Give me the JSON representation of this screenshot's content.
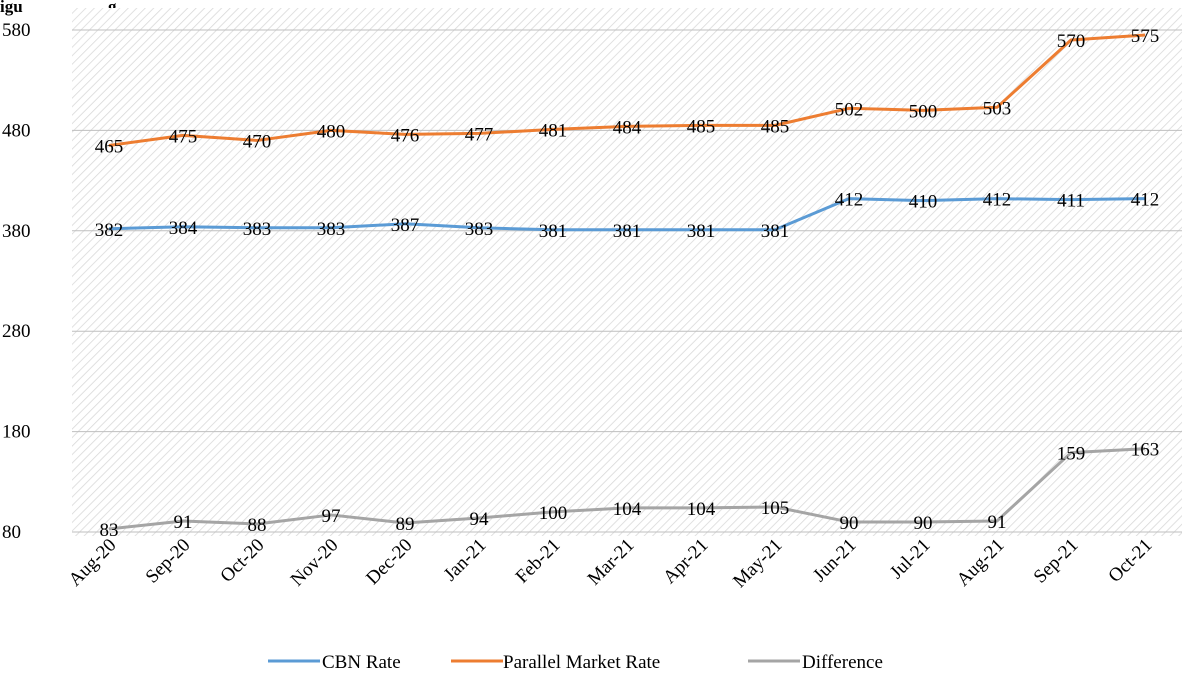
{
  "chart_data": {
    "type": "line",
    "categories": [
      "Aug-20",
      "Sep-20",
      "Oct-20",
      "Nov-20",
      "Dec-20",
      "Jan-21",
      "Feb-21",
      "Mar-21",
      "Apr-21",
      "May-21",
      "Jun-21",
      "Jul-21",
      "Aug-21",
      "Sep-21",
      "Oct-21"
    ],
    "series": [
      {
        "name": "CBN Rate",
        "color": "#5b9bd5",
        "values": [
          382,
          384,
          383,
          383,
          387,
          383,
          381,
          381,
          381,
          381,
          412,
          410,
          412,
          411,
          412
        ]
      },
      {
        "name": "Parallel Market Rate",
        "color": "#ed7d31",
        "values": [
          465,
          475,
          470,
          480,
          476,
          477,
          481,
          484,
          485,
          485,
          502,
          500,
          503,
          570,
          575
        ]
      },
      {
        "name": "Difference",
        "color": "#a5a5a5",
        "values": [
          83,
          91,
          88,
          97,
          89,
          94,
          100,
          104,
          104,
          105,
          90,
          90,
          91,
          159,
          163
        ]
      }
    ],
    "yticks": [
      80,
      180,
      280,
      380,
      480,
      580
    ],
    "ylim": [
      80,
      580
    ],
    "grid": true,
    "legend_position": "bottom",
    "partial_header": "igu",
    "partial_header_2": "g"
  }
}
